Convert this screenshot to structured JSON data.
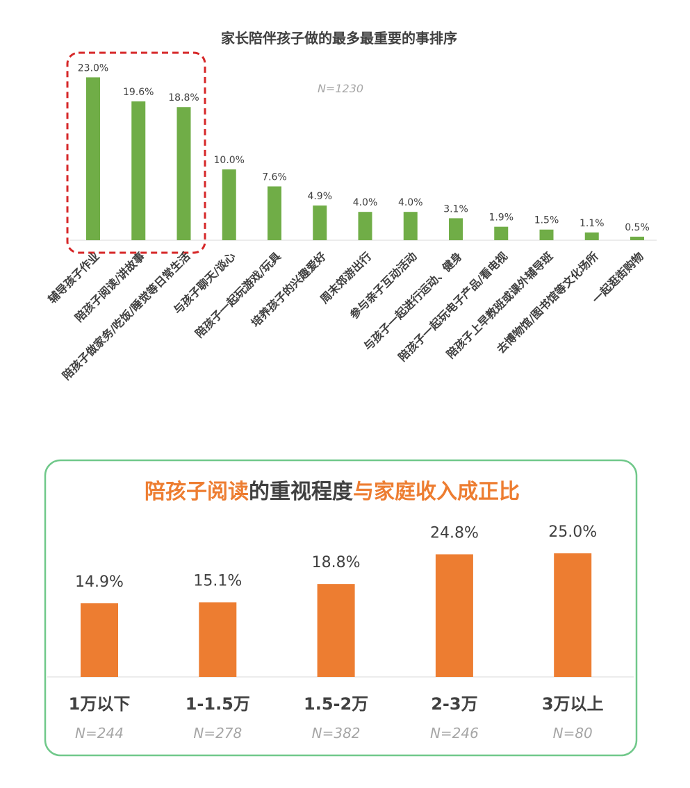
{
  "chart_data": [
    {
      "type": "bar",
      "title": "家长陪伴孩子做的最多最重要的事排序",
      "annotation": "N=1230",
      "categories": [
        "辅导孩子作业",
        "陪孩子阅读/讲故事",
        "陪孩子做家务/吃饭/睡觉等日常生活",
        "与孩子聊天/谈心",
        "陪孩子一起玩游戏/玩具",
        "培养孩子的兴趣爱好",
        "周末郊游出行",
        "参与亲子互动活动",
        "与孩子一起进行运动、健身",
        "陪孩子一起玩电子产品/看电视",
        "陪孩子上早教班或课外辅导班",
        "去博物馆/图书馆等文化场所",
        "一起逛街购物"
      ],
      "values": [
        23.0,
        19.6,
        18.8,
        10.0,
        7.6,
        4.9,
        4.0,
        4.0,
        3.1,
        1.9,
        1.5,
        1.1,
        0.5
      ],
      "value_labels": [
        "23.0%",
        "19.6%",
        "18.8%",
        "10.0%",
        "7.6%",
        "4.9%",
        "4.0%",
        "4.0%",
        "3.1%",
        "1.9%",
        "1.5%",
        "1.1%",
        "0.5%"
      ],
      "ylim": [
        0,
        25
      ],
      "bar_color": "#70ad47",
      "highlight_color": "#d62728",
      "highlight": "dashed box around the top 3 bars"
    },
    {
      "type": "bar",
      "title_parts": [
        {
          "text": "陪孩子阅读",
          "color": "#ed7d31"
        },
        {
          "text": "的重视程度",
          "color": "#404040"
        },
        {
          "text": "与家庭收入成正比",
          "color": "#ed7d31"
        }
      ],
      "categories": [
        "1万以下",
        "1-1.5万",
        "1.5-2万",
        "2-3万",
        "3万以上"
      ],
      "sample_sizes": [
        "N=244",
        "N=278",
        "N=382",
        "N=246",
        "N=80"
      ],
      "values": [
        14.9,
        15.1,
        18.8,
        24.8,
        25.0
      ],
      "value_labels": [
        "14.9%",
        "15.1%",
        "18.8%",
        "24.8%",
        "25.0%"
      ],
      "ylim": [
        0,
        25
      ],
      "bar_color": "#ed7d31",
      "frame_color": "#70c88a"
    }
  ]
}
